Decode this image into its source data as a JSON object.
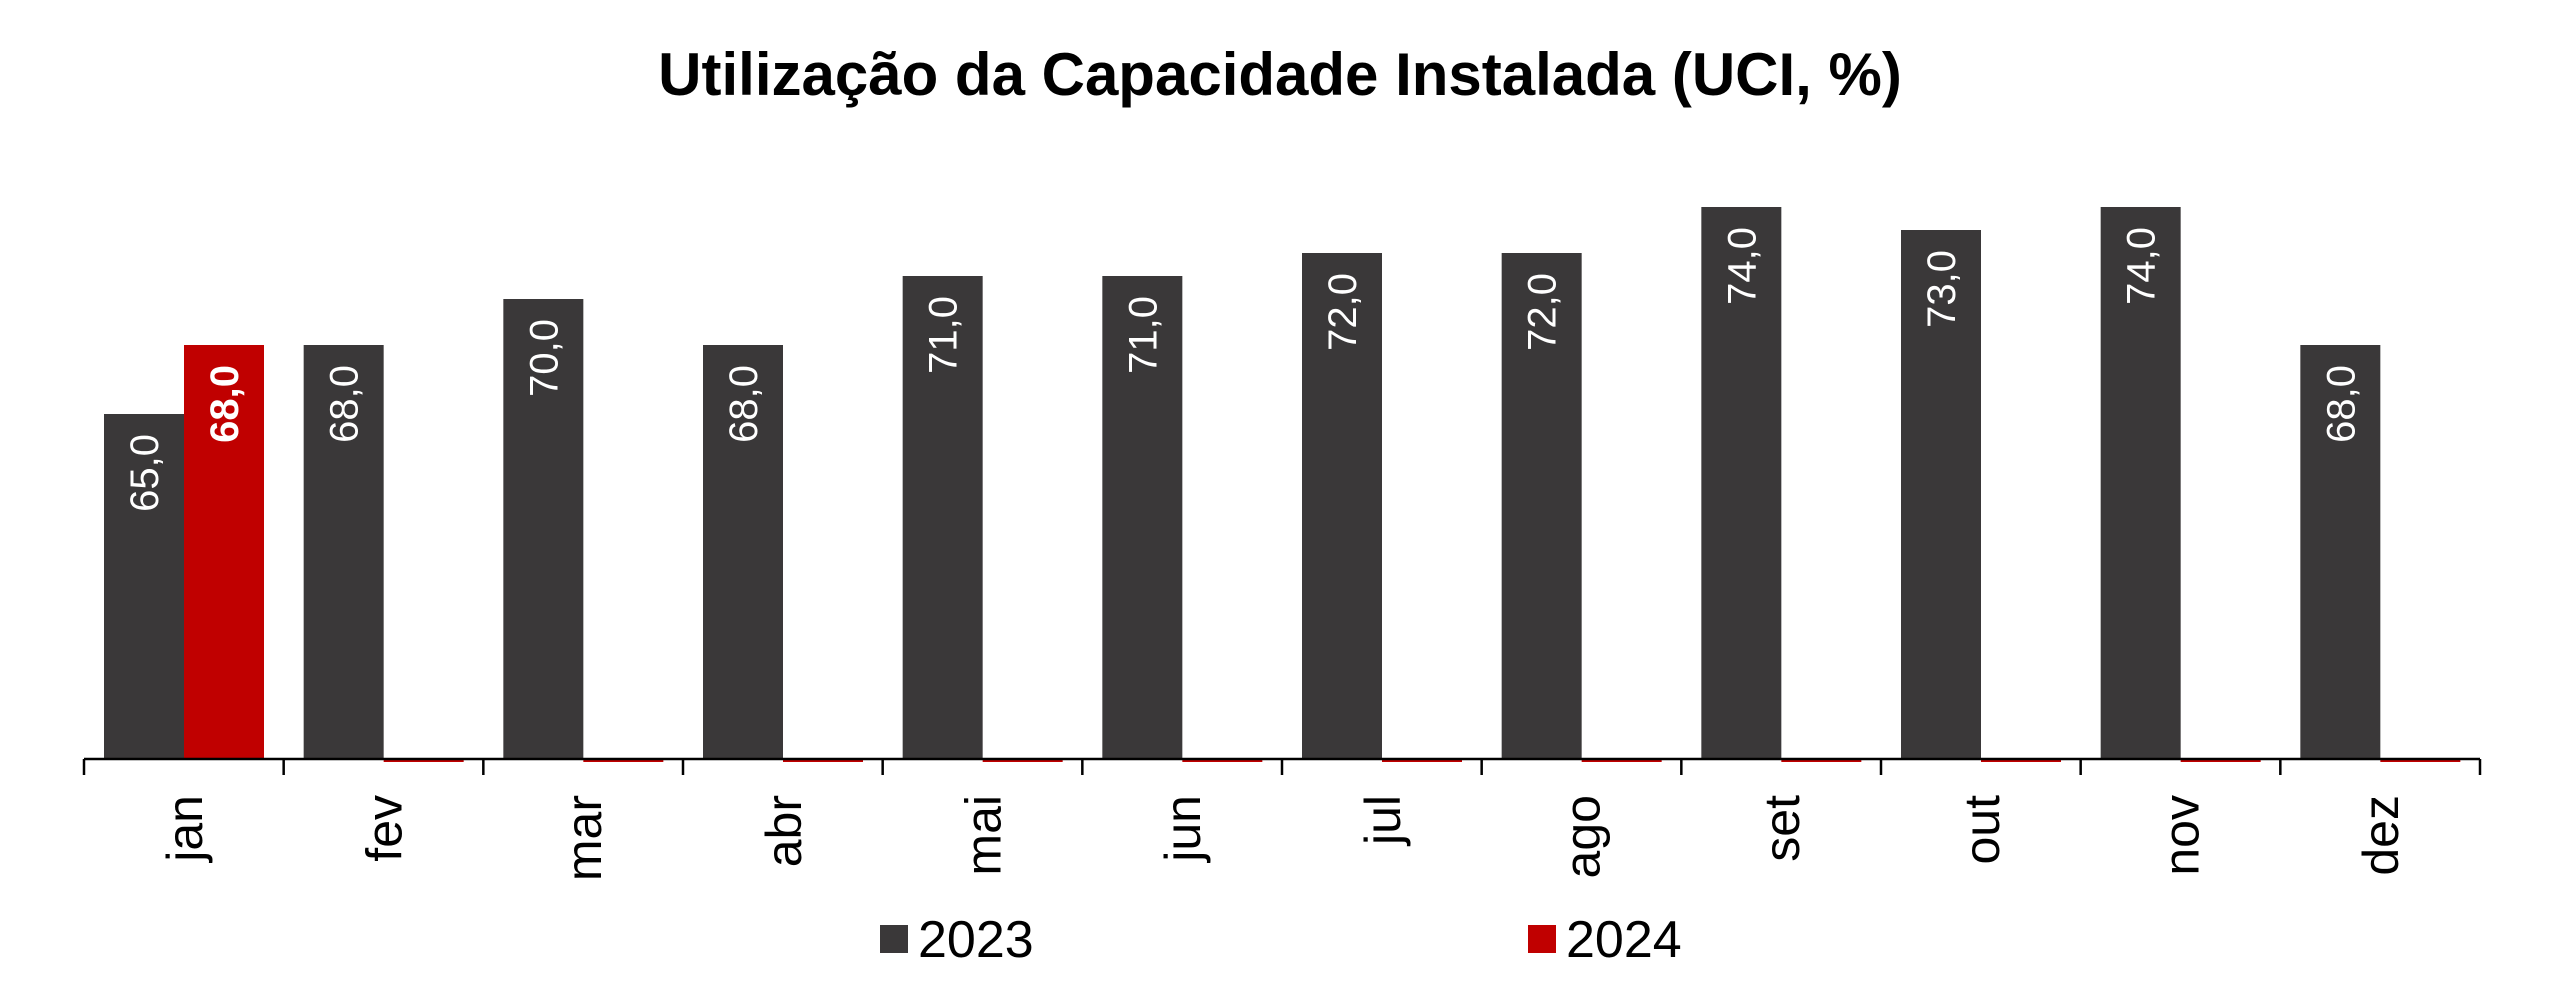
{
  "chart_data": {
    "type": "bar",
    "title": "Utilização da Capacidade Instalada (UCI, %)",
    "xlabel": "",
    "ylabel": "",
    "ylim": [
      50,
      76
    ],
    "grid": false,
    "legend_position": "bottom",
    "categories": [
      "jan",
      "fev",
      "mar",
      "abr",
      "mai",
      "jun",
      "jul",
      "ago",
      "set",
      "out",
      "nov",
      "dez"
    ],
    "series": [
      {
        "name": "2023",
        "color": "#3a3839",
        "values": [
          65,
          68,
          70,
          68,
          71,
          71,
          72,
          72,
          74,
          73,
          74,
          68
        ],
        "labels": [
          "65,0",
          "68,0",
          "70,0",
          "68,0",
          "71,0",
          "71,0",
          "72,0",
          "72,0",
          "74,0",
          "73,0",
          "74,0",
          "68,0"
        ]
      },
      {
        "name": "2024",
        "color": "#c00000",
        "values": [
          68,
          null,
          null,
          null,
          null,
          null,
          null,
          null,
          null,
          null,
          null,
          null
        ],
        "labels": [
          "68,0",
          "",
          "",
          "",
          "",
          "",
          "",
          "",
          "",
          "",
          "",
          ""
        ]
      }
    ]
  }
}
